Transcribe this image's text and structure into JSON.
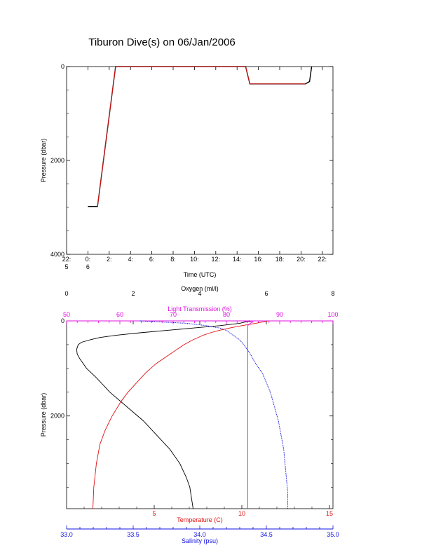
{
  "title": "Tiburon Dive(s) on 06/Jan/2006",
  "colors": {
    "black": "#000000",
    "red": "#e01010",
    "magenta": "#e010e0",
    "blue": "#1010e0"
  },
  "chart_data": [
    {
      "type": "line",
      "panel": "time-series",
      "xlabel": "Time (UTC)",
      "ylabel": "Pressure (dbar)",
      "ylim": [
        4000,
        0
      ],
      "y_ticks": [
        "0",
        "2000",
        "4000"
      ],
      "x_ticks": [
        {
          "line1": "22:",
          "line2": "5"
        },
        {
          "line1": "0:",
          "line2": "6"
        },
        {
          "line1": "2:",
          "line2": ""
        },
        {
          "line1": "4:",
          "line2": ""
        },
        {
          "line1": "6:",
          "line2": ""
        },
        {
          "line1": "8:",
          "line2": ""
        },
        {
          "line1": "10:",
          "line2": ""
        },
        {
          "line1": "12:",
          "line2": ""
        },
        {
          "line1": "14:",
          "line2": ""
        },
        {
          "line1": "16:",
          "line2": ""
        },
        {
          "line1": "18:",
          "line2": ""
        },
        {
          "line1": "20:",
          "line2": ""
        },
        {
          "line1": "22:",
          "line2": ""
        }
      ],
      "xlim_hours": [
        -2,
        23
      ],
      "series": [
        {
          "color": "black",
          "x_hours": [
            0,
            0.9,
            2.6,
            14.8,
            15.2,
            20.4,
            20.8,
            21.0
          ],
          "pressure": [
            2980,
            2980,
            0,
            0,
            370,
            370,
            320,
            0
          ]
        },
        {
          "color": "red",
          "x_hours": [
            0.9,
            2.6,
            14.8,
            15.2,
            20.4
          ],
          "pressure": [
            2980,
            0,
            0,
            370,
            370
          ]
        }
      ]
    },
    {
      "type": "line",
      "panel": "profiles",
      "ylabel": "Pressure (dbar)",
      "ylim": [
        3950,
        0
      ],
      "y_ticks": [
        "0",
        "2000"
      ],
      "axes": {
        "oxygen": {
          "label": "Oxygen (ml/l)",
          "range": [
            0,
            8
          ],
          "ticks": [
            "0",
            "2",
            "4",
            "6",
            "8"
          ],
          "color": "black"
        },
        "light_transmission": {
          "label": "Light Transmission (%)",
          "range": [
            50,
            100
          ],
          "ticks": [
            "50",
            "60",
            "70",
            "80",
            "90",
            "100"
          ],
          "color": "magenta"
        },
        "temperature": {
          "label": "Temperature (C)",
          "range": [
            0,
            15.2
          ],
          "ticks": [
            "5",
            "10",
            "15"
          ],
          "color": "red"
        },
        "salinity": {
          "label": "Salinity (psu)",
          "range": [
            33.0,
            35.0
          ],
          "ticks": [
            "33.0",
            "33.5",
            "34.0",
            "34.5",
            "35.0"
          ],
          "color": "blue"
        }
      },
      "series": [
        {
          "color": "black",
          "axis": "oxygen",
          "pressure": [
            0,
            50,
            100,
            150,
            200,
            250,
            300,
            350,
            400,
            450,
            500,
            600,
            700,
            800,
            1000,
            1200,
            1500,
            1800,
            2100,
            2400,
            2700,
            3000,
            3300,
            3500,
            3950
          ],
          "values": [
            5.5,
            5.2,
            4.6,
            3.8,
            3.0,
            2.2,
            1.5,
            1.0,
            0.7,
            0.45,
            0.35,
            0.3,
            0.32,
            0.4,
            0.6,
            0.9,
            1.3,
            1.8,
            2.3,
            2.7,
            3.1,
            3.4,
            3.6,
            3.7,
            3.8
          ]
        },
        {
          "color": "red",
          "axis": "temperature",
          "pressure": [
            0,
            50,
            100,
            150,
            200,
            250,
            300,
            400,
            500,
            700,
            900,
            1100,
            1300,
            1500,
            1700,
            2000,
            2300,
            2600,
            3000,
            3500,
            3950
          ],
          "values": [
            11.5,
            10.8,
            10.0,
            9.3,
            8.7,
            8.2,
            7.8,
            7.2,
            6.7,
            5.9,
            5.1,
            4.5,
            4.0,
            3.5,
            3.1,
            2.6,
            2.2,
            1.9,
            1.7,
            1.55,
            1.5
          ]
        },
        {
          "color": "magenta",
          "axis": "light_transmission",
          "pressure": [
            0,
            20,
            50,
            100,
            200,
            300,
            500,
            1000,
            1500,
            2000,
            2500,
            3000,
            3500,
            3950
          ],
          "values": [
            83,
            85,
            84.5,
            84,
            84,
            84,
            84,
            84,
            84,
            84,
            84,
            84,
            84,
            84
          ]
        },
        {
          "color": "blue",
          "axis": "salinity",
          "pressure": [
            0,
            50,
            100,
            150,
            200,
            300,
            400,
            500,
            700,
            900,
            1100,
            1300,
            1500,
            1800,
            2100,
            2400,
            2700,
            3000,
            3300,
            3600,
            3950
          ],
          "values": [
            33.55,
            33.9,
            34.05,
            34.15,
            34.2,
            34.25,
            34.3,
            34.33,
            34.38,
            34.42,
            34.47,
            34.5,
            34.53,
            34.56,
            34.59,
            34.61,
            34.63,
            34.64,
            34.65,
            34.66,
            34.66
          ]
        }
      ],
      "x_axis_labels": {
        "temperature": "Temperature (C)",
        "salinity": "Salinity (psu)",
        "oxygen": "Oxygen (ml/l)",
        "light_transmission": "Light Transmission (%)"
      }
    }
  ]
}
